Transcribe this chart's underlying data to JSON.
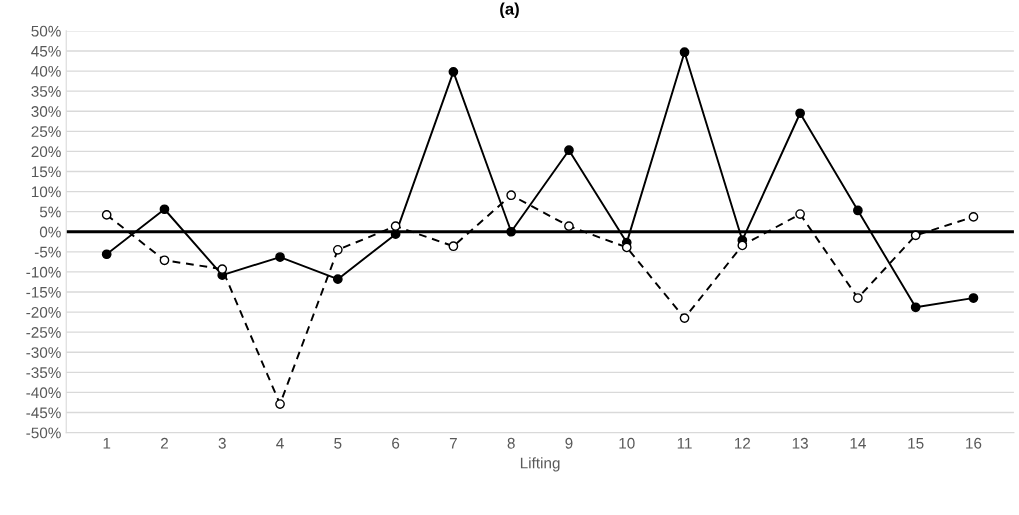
{
  "chart_data": {
    "type": "line",
    "title": "(a)",
    "xlabel": "Lifting",
    "categories": [
      "1",
      "2",
      "3",
      "4",
      "5",
      "6",
      "7",
      "8",
      "9",
      "10",
      "11",
      "12",
      "13",
      "14",
      "15",
      "16"
    ],
    "series": [
      {
        "color": "#000000",
        "line_style": "solid",
        "marker": "circle",
        "values": [
          -5.6,
          5.6,
          -10.8,
          -6.3,
          -11.8,
          -0.6,
          39.8,
          0,
          20.3,
          -2.7,
          44.7,
          -2.1,
          29.5,
          5.3,
          -18.8,
          -16.5
        ]
      },
      {
        "color": "#000000",
        "line_style": "dashed",
        "marker": "circle",
        "values": [
          4.2,
          -7.1,
          -9.3,
          -42.9,
          -4.5,
          1.4,
          -3.6,
          9.1,
          1.4,
          -3.9,
          -21.5,
          -3.4,
          4.4,
          -16.5,
          -0.9,
          3.7
        ]
      }
    ],
    "ylim": [
      -50,
      50
    ],
    "yticks": [
      {
        "value": -50,
        "label": "-50%"
      },
      {
        "value": -45,
        "label": "-45%"
      },
      {
        "value": -40,
        "label": "-40%"
      },
      {
        "value": -35,
        "label": "-35%"
      },
      {
        "value": -30,
        "label": "-30%"
      },
      {
        "value": -25,
        "label": "-25%"
      },
      {
        "value": -20,
        "label": "-20%"
      },
      {
        "value": -15,
        "label": "-15%"
      },
      {
        "value": -10,
        "label": "-10%"
      },
      {
        "value": -5,
        "label": "-5%"
      },
      {
        "value": 0,
        "label": "0%"
      },
      {
        "value": 5,
        "label": "5%"
      },
      {
        "value": 10,
        "label": "10%"
      },
      {
        "value": 15,
        "label": "15%"
      },
      {
        "value": 20,
        "label": "20%"
      },
      {
        "value": 25,
        "label": "25%"
      },
      {
        "value": 30,
        "label": "30%"
      },
      {
        "value": 35,
        "label": "35%"
      },
      {
        "value": 40,
        "label": "40%"
      },
      {
        "value": 45,
        "label": "45%"
      },
      {
        "value": 50,
        "label": "50%"
      }
    ],
    "ref_lines": [
      {
        "axis": "y",
        "value": 0,
        "color": "#000000",
        "line_style": "solid"
      }
    ],
    "grid": "y",
    "legend": false
  }
}
